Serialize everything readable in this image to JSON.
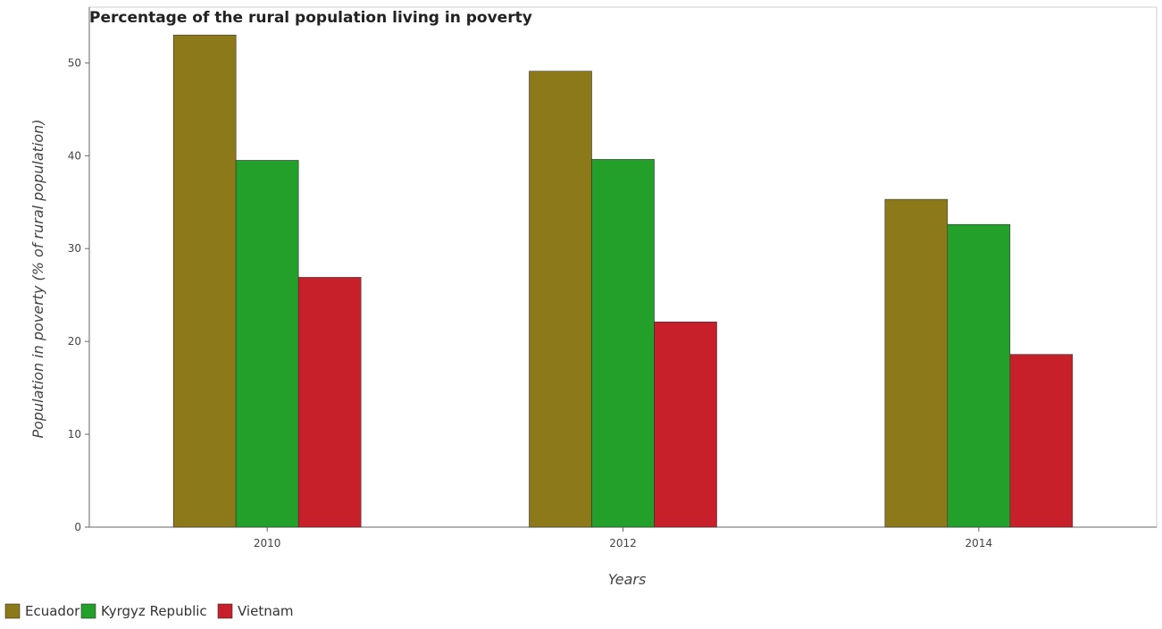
{
  "chart_data": {
    "type": "bar",
    "title": "Percentage of the rural population living in poverty",
    "xlabel": "Years",
    "ylabel": "Population in poverty (% of rural population)",
    "categories": [
      "2010",
      "2012",
      "2014"
    ],
    "ylim": [
      0,
      56
    ],
    "yticks": [
      0,
      10,
      20,
      30,
      40,
      50
    ],
    "grid": false,
    "legend_position": "bottom-left",
    "series": [
      {
        "name": "Ecuador",
        "color": "#8c7a1a",
        "values": [
          53.0,
          49.1,
          35.3
        ]
      },
      {
        "name": "Kyrgyz Republic",
        "color": "#22a02a",
        "values": [
          39.5,
          39.6,
          32.6
        ]
      },
      {
        "name": "Vietnam",
        "color": "#c8202b",
        "values": [
          26.9,
          22.1,
          18.6
        ]
      }
    ]
  }
}
